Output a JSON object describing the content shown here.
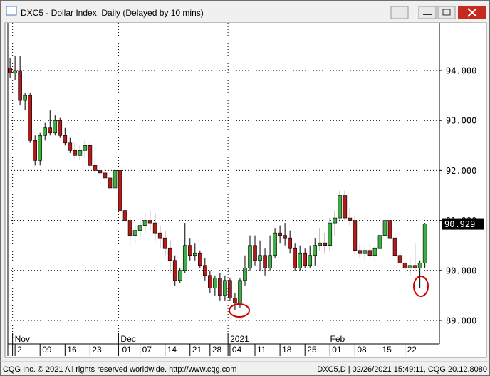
{
  "chart_data": {
    "type": "candlestick",
    "title": "DXC5 - Dollar Index, Daily (Delayed by 10 mins)",
    "x": [
      0,
      1,
      2,
      3,
      4,
      5,
      6,
      7,
      8,
      9,
      10,
      11,
      12,
      13,
      14,
      15,
      16,
      17,
      18,
      19,
      20,
      21,
      22,
      23,
      24,
      25,
      26,
      27,
      28,
      29,
      30,
      31,
      32,
      33,
      34,
      35,
      36,
      37,
      38,
      39,
      40,
      41,
      42,
      43,
      44,
      45,
      46,
      47,
      48,
      49,
      50,
      51,
      52,
      53,
      54,
      55,
      56,
      57,
      58,
      59,
      60,
      61,
      62,
      63,
      64,
      65,
      66,
      67,
      68,
      69,
      70,
      71,
      72,
      73,
      74,
      75,
      76,
      77,
      78,
      79,
      80,
      81,
      82,
      83
    ],
    "open": [
      94.05,
      93.95,
      94.0,
      93.4,
      93.5,
      92.6,
      92.2,
      92.7,
      92.85,
      92.75,
      93.0,
      92.7,
      92.55,
      92.4,
      92.3,
      92.4,
      92.5,
      92.1,
      92.0,
      91.95,
      91.85,
      91.65,
      92.0,
      91.2,
      91.0,
      90.7,
      90.8,
      90.9,
      91.0,
      90.95,
      90.75,
      90.65,
      90.45,
      90.2,
      89.8,
      90.0,
      90.5,
      90.3,
      90.35,
      90.1,
      89.9,
      89.65,
      89.85,
      89.5,
      89.8,
      89.45,
      89.35,
      89.8,
      90.05,
      90.5,
      90.2,
      90.3,
      90.05,
      90.3,
      90.75,
      90.7,
      90.65,
      90.45,
      90.05,
      90.35,
      90.1,
      90.3,
      90.5,
      90.55,
      90.5,
      90.95,
      91.05,
      91.5,
      91.05,
      91.0,
      90.4,
      90.35,
      90.4,
      90.3,
      90.45,
      90.7,
      91.0,
      90.65,
      90.3,
      90.15,
      90.05,
      90.1,
      90.05,
      90.15
    ],
    "high": [
      94.25,
      94.3,
      94.3,
      93.55,
      93.55,
      92.7,
      92.75,
      92.95,
      93.2,
      93.1,
      93.05,
      92.85,
      92.65,
      92.55,
      92.5,
      92.6,
      92.55,
      92.25,
      92.1,
      92.05,
      91.95,
      92.05,
      92.05,
      91.3,
      91.1,
      90.9,
      91.0,
      91.15,
      91.2,
      91.15,
      90.9,
      90.8,
      90.6,
      90.3,
      90.05,
      90.95,
      90.65,
      90.55,
      90.4,
      90.25,
      90.0,
      89.9,
      89.95,
      89.9,
      89.85,
      89.55,
      89.85,
      90.3,
      90.7,
      90.7,
      90.6,
      90.45,
      90.7,
      90.85,
      90.9,
      90.95,
      90.8,
      90.55,
      90.5,
      90.45,
      90.5,
      90.65,
      90.85,
      90.75,
      91.05,
      91.2,
      91.6,
      91.6,
      91.25,
      91.1,
      90.55,
      90.5,
      90.55,
      90.5,
      90.8,
      91.05,
      91.05,
      90.75,
      90.4,
      90.2,
      90.25,
      90.55,
      90.2,
      90.95
    ],
    "low": [
      93.85,
      93.8,
      93.3,
      93.2,
      92.55,
      92.1,
      92.1,
      92.6,
      92.7,
      92.7,
      92.65,
      92.5,
      92.35,
      92.25,
      92.2,
      92.25,
      92.05,
      91.95,
      91.9,
      91.8,
      91.6,
      91.6,
      91.15,
      90.95,
      90.5,
      90.55,
      90.6,
      90.75,
      90.8,
      90.6,
      90.45,
      90.3,
      89.95,
      89.7,
      89.75,
      89.95,
      90.2,
      90.2,
      90.05,
      89.8,
      89.55,
      89.5,
      89.4,
      89.4,
      89.4,
      89.2,
      89.25,
      89.7,
      90.0,
      90.1,
      90.0,
      89.9,
      90.0,
      90.25,
      90.55,
      90.5,
      90.35,
      90.0,
      90.0,
      90.05,
      90.05,
      90.1,
      90.4,
      90.35,
      90.4,
      90.7,
      91.0,
      91.0,
      90.9,
      90.35,
      90.25,
      90.2,
      90.25,
      90.2,
      90.3,
      90.6,
      90.6,
      90.25,
      90.1,
      89.95,
      89.9,
      90.0,
      89.65,
      90.05
    ],
    "close": [
      93.95,
      94.0,
      93.4,
      93.5,
      92.6,
      92.2,
      92.7,
      92.85,
      92.75,
      93.0,
      92.7,
      92.55,
      92.4,
      92.3,
      92.4,
      92.5,
      92.1,
      92.0,
      91.95,
      91.85,
      91.65,
      92.0,
      91.2,
      91.0,
      90.7,
      90.8,
      90.9,
      91.0,
      90.95,
      90.75,
      90.65,
      90.45,
      90.2,
      89.8,
      90.0,
      90.5,
      90.3,
      90.35,
      90.1,
      89.9,
      89.65,
      89.85,
      89.5,
      89.8,
      89.45,
      89.35,
      89.8,
      90.05,
      90.5,
      90.2,
      90.3,
      90.05,
      90.3,
      90.75,
      90.7,
      90.65,
      90.45,
      90.05,
      90.35,
      90.1,
      90.3,
      90.5,
      90.55,
      90.5,
      90.95,
      91.05,
      91.5,
      91.05,
      91.0,
      90.4,
      90.35,
      90.4,
      90.3,
      90.45,
      90.7,
      91.0,
      90.65,
      90.3,
      90.15,
      90.05,
      90.1,
      90.05,
      90.15,
      90.929
    ],
    "up_color": "#3cb043",
    "down_color": "#b01c1c",
    "xlim": [
      -0.3,
      85.9
    ],
    "xticks": [
      {
        "value": 1,
        "label": "2"
      },
      {
        "value": 6,
        "label": "09"
      },
      {
        "value": 11,
        "label": "16"
      },
      {
        "value": 16,
        "label": "23"
      },
      {
        "value": 22,
        "label": "01"
      },
      {
        "value": 26,
        "label": "07"
      },
      {
        "value": 31,
        "label": "14"
      },
      {
        "value": 36,
        "label": "21"
      },
      {
        "value": 40,
        "label": "28"
      },
      {
        "value": 44,
        "label": "04"
      },
      {
        "value": 49,
        "label": "11"
      },
      {
        "value": 54,
        "label": "18"
      },
      {
        "value": 59,
        "label": "25"
      },
      {
        "value": 64,
        "label": "01"
      },
      {
        "value": 69,
        "label": "08"
      },
      {
        "value": 74,
        "label": "15"
      },
      {
        "value": 79,
        "label": "22"
      }
    ],
    "month_ticks": [
      {
        "value": 0.5,
        "label": "Nov"
      },
      {
        "value": 21.7,
        "label": "Dec"
      },
      {
        "value": 43.6,
        "label": "2021"
      },
      {
        "value": 63.6,
        "label": "Feb"
      }
    ],
    "ylim": [
      88.53,
      94.94
    ],
    "yticks": [
      {
        "value": 89,
        "label": "89.000"
      },
      {
        "value": 90,
        "label": "90.000"
      },
      {
        "value": 91,
        "label": "91.000"
      },
      {
        "value": 92,
        "label": "92.000"
      },
      {
        "value": 93,
        "label": "93.000"
      },
      {
        "value": 94,
        "label": "94.000"
      }
    ],
    "grid": true
  },
  "footer": {
    "left": "CQG Inc. © 2021 All rights reserved worldwide. http://www.cqg.com",
    "right": "DXC5,D | 02/26/2021 15:49:11, CQG 20.12.8080"
  }
}
